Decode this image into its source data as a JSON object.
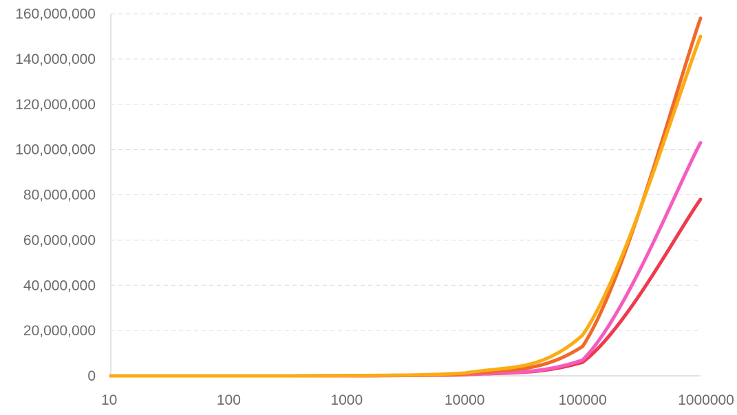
{
  "chart_data": {
    "type": "line",
    "title": "",
    "xlabel": "",
    "ylabel": "",
    "x_scale": "log",
    "x": [
      10,
      100,
      1000,
      10000,
      100000,
      1000000
    ],
    "x_tick_labels": [
      "10",
      "100",
      "1000",
      "10000",
      "100000",
      "1000000"
    ],
    "y_tick_labels": [
      "0",
      "20,000,000",
      "40,000,000",
      "60,000,000",
      "80,000,000",
      "100,000,000",
      "120,000,000",
      "140,000,000",
      "160,000,000"
    ],
    "y_ticks": [
      0,
      20000000,
      40000000,
      60000000,
      80000000,
      100000000,
      120000000,
      140000000,
      160000000
    ],
    "ylim": [
      0,
      160000000
    ],
    "xlim": [
      10,
      1000000
    ],
    "grid": true,
    "legend": "none",
    "series": [
      {
        "color": "#ee3a4f",
        "values": [
          0,
          0,
          50000,
          500000,
          6000000,
          78000000
        ]
      },
      {
        "color": "#f55cc0",
        "values": [
          0,
          0,
          50000,
          500000,
          7000000,
          103000000
        ]
      },
      {
        "color": "#ef6a2a",
        "values": [
          0,
          0,
          60000,
          800000,
          13000000,
          158000000
        ]
      },
      {
        "color": "#fbac14",
        "values": [
          0,
          0,
          80000,
          1200000,
          18000000,
          150000000
        ]
      }
    ]
  }
}
